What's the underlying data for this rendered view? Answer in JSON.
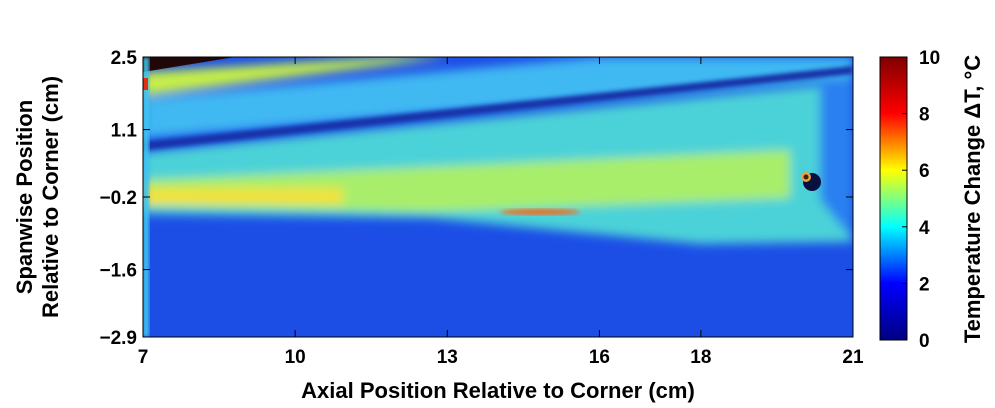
{
  "chart_data": {
    "type": "heatmap",
    "xlabel": "Axial Position Relative to Corner (cm)",
    "ylabel": [
      "Spanwise Position",
      "Relative to Corner (cm)"
    ],
    "colorbar_label": "Temperature Change ΔT, °C",
    "xlim": [
      7,
      21
    ],
    "xticks": [
      7,
      10,
      13,
      16,
      18,
      21
    ],
    "ylim": [
      -2.9,
      2.5
    ],
    "yticks": [
      {
        "value": -2.9,
        "label": "−2.9"
      },
      {
        "value": -1.6,
        "label": "−1.6"
      },
      {
        "value": -0.2,
        "label": "−0.2"
      },
      1.1,
      2.5
    ],
    "clim": [
      0,
      10
    ],
    "cticks": [
      0,
      2,
      4,
      6,
      8,
      10
    ],
    "colormap": "jet"
  }
}
